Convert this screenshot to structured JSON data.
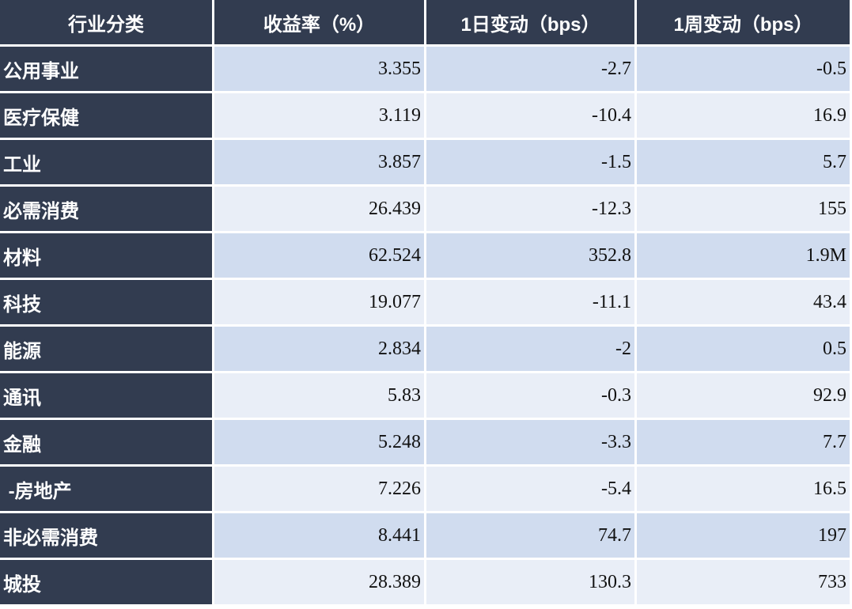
{
  "table": {
    "header": [
      "行业分类",
      "收益率（%）",
      "1日变动（bps）",
      "1周变动（bps）"
    ],
    "rows": [
      [
        "公用事业",
        "3.355",
        "-2.7",
        "-0.5"
      ],
      [
        "医疗保健",
        "3.119",
        "-10.4",
        "16.9"
      ],
      [
        "工业",
        "3.857",
        "-1.5",
        "5.7"
      ],
      [
        "必需消费",
        "26.439",
        "-12.3",
        "155"
      ],
      [
        "材料",
        "62.524",
        "352.8",
        "1.9M"
      ],
      [
        "科技",
        "19.077",
        "-11.1",
        "43.4"
      ],
      [
        "能源",
        "2.834",
        "-2",
        "0.5"
      ],
      [
        "通讯",
        "5.83",
        "-0.3",
        "92.9"
      ],
      [
        "金融",
        "5.248",
        "-3.3",
        "7.7"
      ],
      [
        " -房地产",
        "7.226",
        "-5.4",
        "16.5"
      ],
      [
        "非必需消费",
        "8.441",
        "74.7",
        "197"
      ],
      [
        "城投",
        "28.389",
        "130.3",
        "733"
      ]
    ]
  }
}
